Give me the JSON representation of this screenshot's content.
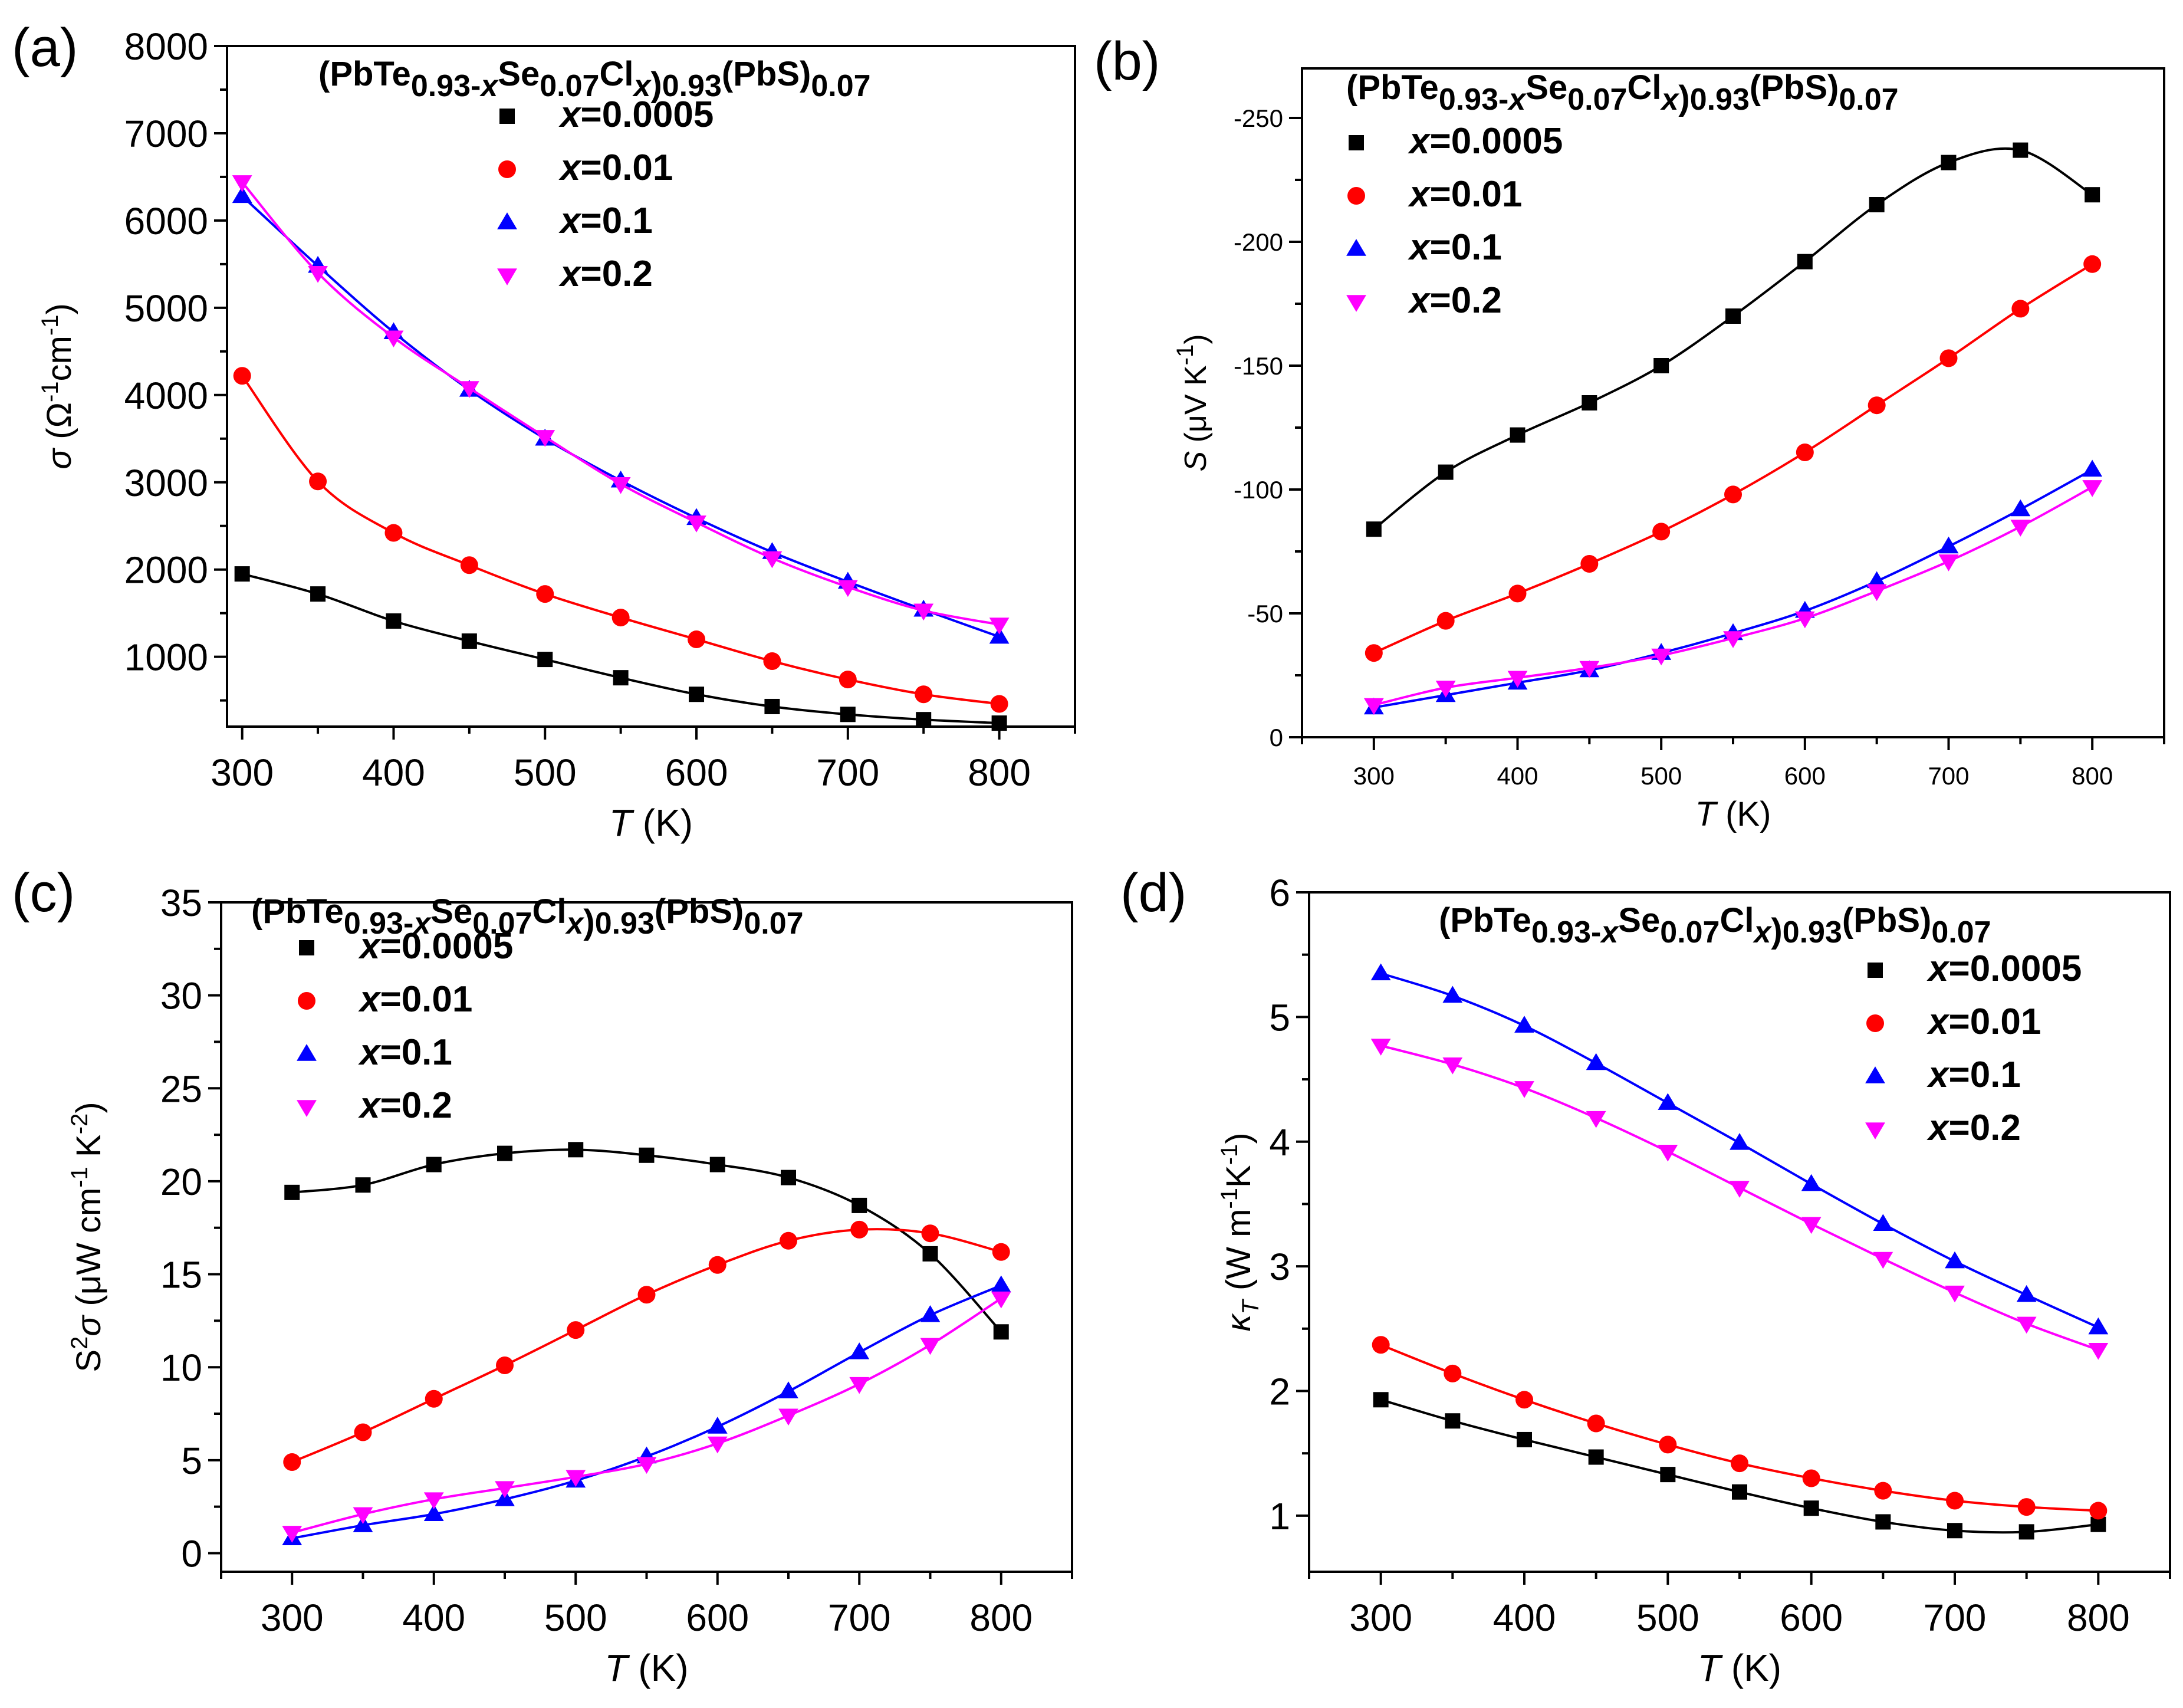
{
  "figure": {
    "formula": {
      "base": "(PbTe",
      "sub1": "0.93-",
      "sub1_x": "x",
      "se": "Se",
      "sub2": "0.07",
      "cl": "Cl",
      "sub3_x": "x",
      "sub4": "0.93",
      "pbs": "(PbS)",
      "sub5": "0.07"
    }
  },
  "chart_data": [
    {
      "panel": "(a)",
      "type": "line",
      "x": [
        300,
        350,
        400,
        450,
        500,
        550,
        600,
        650,
        700,
        750,
        800
      ],
      "xlabel_italic": "T",
      "xlabel_rest": " (K)",
      "ylabel": "σ (Ω⁻¹cm⁻¹)",
      "xlim": [
        290,
        850
      ],
      "ylim": [
        200,
        8000
      ],
      "xticks": [
        "300",
        "400",
        "500",
        "600",
        "700",
        "800"
      ],
      "xtick_values": [
        300,
        400,
        500,
        600,
        700,
        800
      ],
      "yticks": [
        "1000",
        "2000",
        "3000",
        "4000",
        "5000",
        "6000",
        "7000",
        "8000"
      ],
      "ytick_values": [
        1000,
        2000,
        3000,
        4000,
        5000,
        6000,
        7000,
        8000
      ],
      "legend_position": "top-center",
      "series": [
        {
          "name_italic": "x",
          "name_rest": "=0.0005",
          "color": "#000000",
          "marker": "square",
          "values": [
            1950,
            1720,
            1410,
            1180,
            970,
            760,
            570,
            430,
            340,
            280,
            240
          ]
        },
        {
          "name_italic": "x",
          "name_rest": "=0.01",
          "color": "#ff0000",
          "marker": "circle",
          "values": [
            4220,
            3010,
            2420,
            2050,
            1720,
            1450,
            1200,
            950,
            740,
            570,
            460
          ]
        },
        {
          "name_italic": "x",
          "name_rest": "=0.1",
          "color": "#0000ff",
          "marker": "triangle-up",
          "values": [
            6280,
            5480,
            4720,
            4060,
            3500,
            3020,
            2590,
            2200,
            1860,
            1540,
            1230
          ]
        },
        {
          "name_italic": "x",
          "name_rest": "=0.2",
          "color": "#ff00ff",
          "marker": "triangle-down",
          "values": [
            6440,
            5400,
            4660,
            4080,
            3520,
            2980,
            2540,
            2130,
            1800,
            1530,
            1370
          ]
        }
      ]
    },
    {
      "panel": "(b)",
      "type": "line",
      "x": [
        300,
        350,
        400,
        450,
        500,
        550,
        600,
        650,
        700,
        750,
        800
      ],
      "xlabel_italic": "T",
      "xlabel_rest": " (K)",
      "ylabel": "S (μV K⁻¹)",
      "xlim": [
        250,
        850
      ],
      "ylim": [
        0,
        -270
      ],
      "xticks": [
        "300",
        "400",
        "500",
        "600",
        "700",
        "800"
      ],
      "xtick_values": [
        300,
        400,
        500,
        600,
        700,
        800
      ],
      "yticks": [
        "0",
        "-50",
        "-100",
        "-150",
        "-200",
        "-250"
      ],
      "ytick_values": [
        0,
        -50,
        -100,
        -150,
        -200,
        -250
      ],
      "legend_position": "top-left",
      "series": [
        {
          "name_italic": "x",
          "name_rest": "=0.0005",
          "color": "#000000",
          "marker": "square",
          "values": [
            -84,
            -107,
            -122,
            -135,
            -150,
            -170,
            -192,
            -215,
            -232,
            -237,
            -219
          ]
        },
        {
          "name_italic": "x",
          "name_rest": "=0.01",
          "color": "#ff0000",
          "marker": "circle",
          "values": [
            -34,
            -47,
            -58,
            -70,
            -83,
            -98,
            -115,
            -134,
            -153,
            -173,
            -191
          ]
        },
        {
          "name_italic": "x",
          "name_rest": "=0.1",
          "color": "#0000ff",
          "marker": "triangle-up",
          "values": [
            -12,
            -17,
            -22,
            -27,
            -34,
            -42,
            -51,
            -63,
            -77,
            -92,
            -108
          ]
        },
        {
          "name_italic": "x",
          "name_rest": "=0.2",
          "color": "#ff00ff",
          "marker": "triangle-down",
          "values": [
            -13,
            -20,
            -24,
            -28,
            -33,
            -40,
            -48,
            -59,
            -71,
            -85,
            -101
          ]
        }
      ]
    },
    {
      "panel": "(c)",
      "type": "line",
      "x": [
        300,
        350,
        400,
        450,
        500,
        550,
        600,
        650,
        700,
        750,
        800
      ],
      "xlabel_italic": "T",
      "xlabel_rest": " (K)",
      "ylabel": "S²σ (μW cm⁻¹ K⁻²)",
      "xlim": [
        250,
        850
      ],
      "ylim": [
        -1,
        35
      ],
      "xticks": [
        "300",
        "400",
        "500",
        "600",
        "700",
        "800"
      ],
      "xtick_values": [
        300,
        400,
        500,
        600,
        700,
        800
      ],
      "yticks": [
        "0",
        "5",
        "10",
        "15",
        "20",
        "25",
        "30",
        "35"
      ],
      "ytick_values": [
        0,
        5,
        10,
        15,
        20,
        25,
        30,
        35
      ],
      "legend_position": "top-left",
      "series": [
        {
          "name_italic": "x",
          "name_rest": "=0.0005",
          "color": "#000000",
          "marker": "square",
          "values": [
            19.4,
            19.8,
            20.9,
            21.5,
            21.7,
            21.4,
            20.9,
            20.2,
            18.7,
            16.1,
            11.9
          ]
        },
        {
          "name_italic": "x",
          "name_rest": "=0.01",
          "color": "#ff0000",
          "marker": "circle",
          "values": [
            4.9,
            6.5,
            8.3,
            10.1,
            12.0,
            13.9,
            15.5,
            16.8,
            17.4,
            17.2,
            16.2
          ]
        },
        {
          "name_italic": "x",
          "name_rest": "=0.1",
          "color": "#0000ff",
          "marker": "triangle-up",
          "values": [
            0.8,
            1.5,
            2.1,
            2.9,
            3.9,
            5.2,
            6.8,
            8.7,
            10.8,
            12.8,
            14.4
          ]
        },
        {
          "name_italic": "x",
          "name_rest": "=0.2",
          "color": "#ff00ff",
          "marker": "triangle-down",
          "values": [
            1.1,
            2.1,
            2.9,
            3.5,
            4.1,
            4.8,
            5.9,
            7.4,
            9.1,
            11.2,
            13.7
          ]
        }
      ]
    },
    {
      "panel": "(d)",
      "type": "line",
      "x": [
        300,
        350,
        400,
        450,
        500,
        550,
        600,
        650,
        700,
        750,
        800
      ],
      "xlabel_italic": "T",
      "xlabel_rest": " (K)",
      "ylabel": "κ_T (W m⁻¹K⁻¹)",
      "xlim": [
        250,
        850
      ],
      "ylim": [
        0.55,
        6
      ],
      "xticks": [
        "300",
        "400",
        "500",
        "600",
        "700",
        "800"
      ],
      "xtick_values": [
        300,
        400,
        500,
        600,
        700,
        800
      ],
      "yticks": [
        "1",
        "2",
        "3",
        "4",
        "5",
        "6"
      ],
      "ytick_values": [
        1,
        2,
        3,
        4,
        5,
        6
      ],
      "legend_position": "top-right",
      "series": [
        {
          "name_italic": "x",
          "name_rest": "=0.0005",
          "color": "#000000",
          "marker": "square",
          "values": [
            1.93,
            1.76,
            1.61,
            1.47,
            1.33,
            1.19,
            1.06,
            0.95,
            0.88,
            0.87,
            0.93
          ]
        },
        {
          "name_italic": "x",
          "name_rest": "=0.01",
          "color": "#ff0000",
          "marker": "circle",
          "values": [
            2.37,
            2.14,
            1.93,
            1.74,
            1.57,
            1.42,
            1.3,
            1.2,
            1.12,
            1.07,
            1.04
          ]
        },
        {
          "name_italic": "x",
          "name_rest": "=0.1",
          "color": "#0000ff",
          "marker": "triangle-up",
          "values": [
            5.35,
            5.17,
            4.93,
            4.63,
            4.31,
            3.99,
            3.66,
            3.34,
            3.04,
            2.77,
            2.51
          ]
        },
        {
          "name_italic": "x",
          "name_rest": "=0.2",
          "color": "#ff00ff",
          "marker": "triangle-down",
          "values": [
            4.77,
            4.62,
            4.43,
            4.19,
            3.92,
            3.63,
            3.34,
            3.06,
            2.79,
            2.54,
            2.33
          ]
        }
      ]
    }
  ]
}
